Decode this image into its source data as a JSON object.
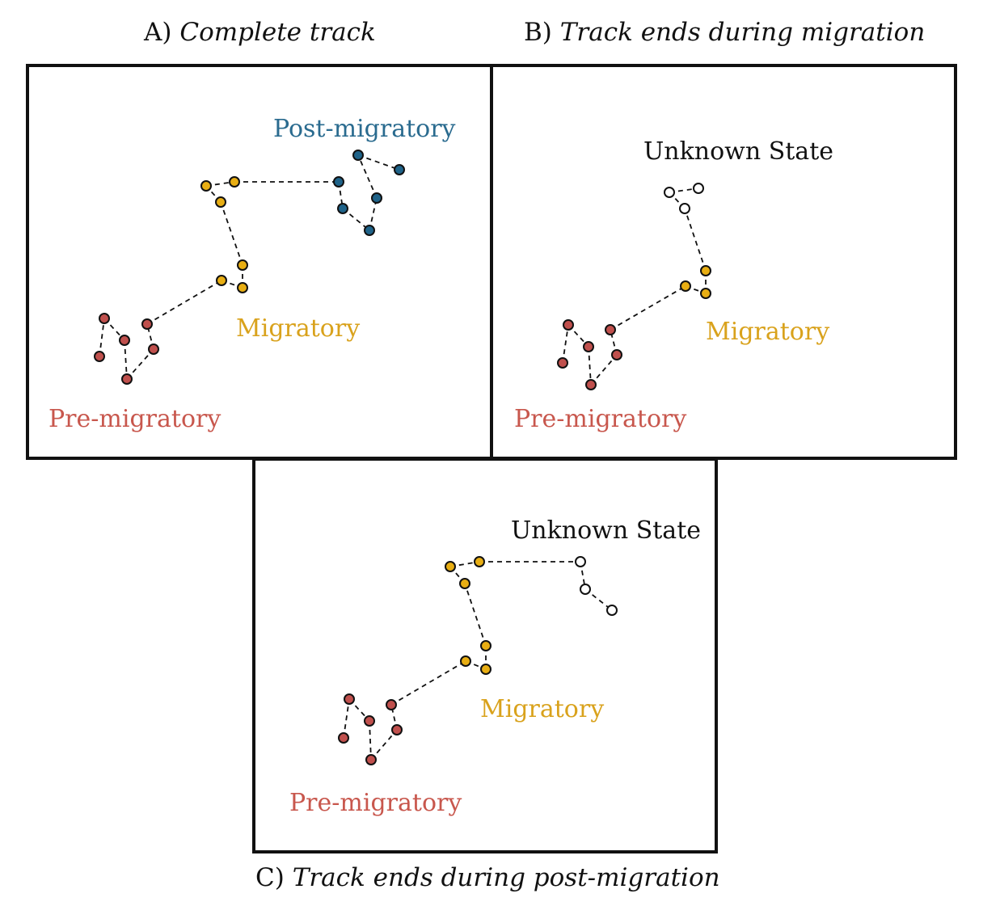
{
  "colors": {
    "pre_migratory": "#c0504d",
    "migratory": "#e8ae13",
    "post_migratory": "#1f6389",
    "unknown": "#ffffff",
    "label_pre": "#c8574d",
    "label_mig": "#d9a21c",
    "label_post": "#2a6b8f",
    "label_unknown": "#111111"
  },
  "panels": [
    {
      "id": "A",
      "caption_letter": "A)",
      "caption_text": "Complete track",
      "labels": {
        "pre": "Pre-migratory",
        "migratory": "Migratory",
        "post": "Post-migratory"
      },
      "track": [
        {
          "state": "pre"
        },
        {
          "state": "pre"
        },
        {
          "state": "pre"
        },
        {
          "state": "pre"
        },
        {
          "state": "pre"
        },
        {
          "state": "pre"
        },
        {
          "state": "migratory"
        },
        {
          "state": "migratory"
        },
        {
          "state": "migratory"
        },
        {
          "state": "migratory"
        },
        {
          "state": "migratory"
        },
        {
          "state": "migratory"
        },
        {
          "state": "post"
        },
        {
          "state": "post"
        },
        {
          "state": "post"
        },
        {
          "state": "post"
        },
        {
          "state": "post"
        },
        {
          "state": "post"
        }
      ]
    },
    {
      "id": "B",
      "caption_letter": "B)",
      "caption_text": "Track ends during migration",
      "labels": {
        "pre": "Pre-migratory",
        "migratory": "Migratory",
        "unknown": "Unknown State"
      },
      "track": [
        {
          "state": "pre"
        },
        {
          "state": "pre"
        },
        {
          "state": "pre"
        },
        {
          "state": "pre"
        },
        {
          "state": "pre"
        },
        {
          "state": "pre"
        },
        {
          "state": "migratory"
        },
        {
          "state": "migratory"
        },
        {
          "state": "migratory"
        },
        {
          "state": "unknown"
        },
        {
          "state": "unknown"
        },
        {
          "state": "unknown"
        }
      ]
    },
    {
      "id": "C",
      "caption_letter": "C)",
      "caption_text": "Track ends during post-migration",
      "labels": {
        "pre": "Pre-migratory",
        "migratory": "Migratory",
        "unknown": "Unknown State"
      },
      "track": [
        {
          "state": "pre"
        },
        {
          "state": "pre"
        },
        {
          "state": "pre"
        },
        {
          "state": "pre"
        },
        {
          "state": "pre"
        },
        {
          "state": "pre"
        },
        {
          "state": "migratory"
        },
        {
          "state": "migratory"
        },
        {
          "state": "migratory"
        },
        {
          "state": "migratory"
        },
        {
          "state": "migratory"
        },
        {
          "state": "migratory"
        },
        {
          "state": "unknown"
        },
        {
          "state": "unknown"
        },
        {
          "state": "unknown"
        }
      ]
    }
  ]
}
